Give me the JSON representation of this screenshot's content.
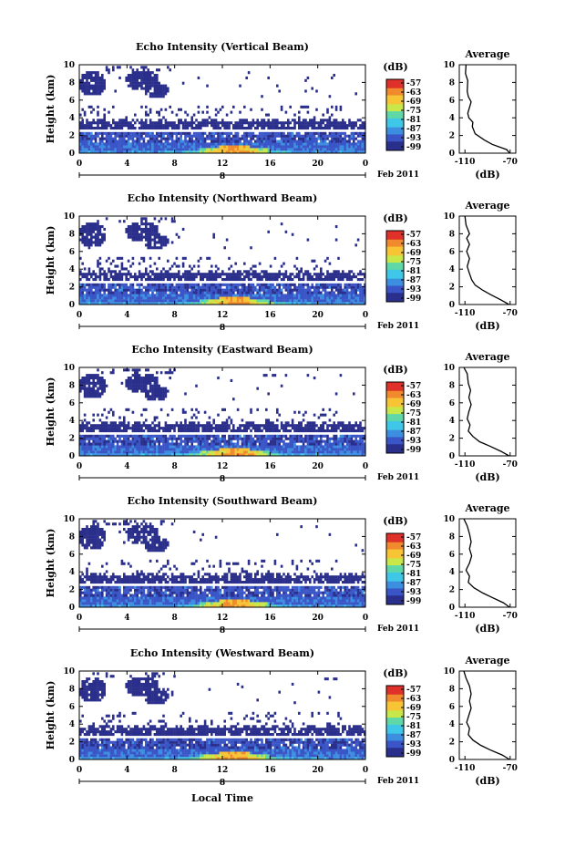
{
  "figure": {
    "xlabel": "Local Time",
    "date_label": "Feb 2011",
    "day_label": "8",
    "colorbar_unit": "(dB)",
    "colorbar_ticks": [
      "-57",
      "-63",
      "-69",
      "-75",
      "-81",
      "-87",
      "-93",
      "-99"
    ],
    "colors": {
      "scale": [
        "#2a2f8c",
        "#3a55c8",
        "#3c8ee0",
        "#3fc7e8",
        "#5fd8a8",
        "#c8e84a",
        "#f7c435",
        "#f08a2c",
        "#e0302a"
      ]
    }
  },
  "chart_data": [
    {
      "type": "heatmap",
      "title": "Echo Intensity (Vertical Beam)",
      "ylabel": "Height (km)",
      "xlim": [
        0,
        24
      ],
      "ylim": [
        0,
        10
      ],
      "xticks": [
        "0",
        "4",
        "8",
        "12",
        "16",
        "20",
        "0"
      ],
      "yticks": [
        "0",
        "2",
        "4",
        "6",
        "8",
        "10"
      ],
      "zlim": [
        -99,
        -57
      ]
    },
    {
      "type": "line",
      "title": "Average",
      "xlabel": "(dB)",
      "xticks": [
        "-110",
        "-70"
      ],
      "yticks": [
        "0",
        "2",
        "4",
        "6",
        "8",
        "10"
      ],
      "xlim": [
        -115,
        -65
      ],
      "ylim": [
        0,
        10
      ],
      "x": [
        -109,
        -109.5,
        -107.5,
        -108,
        -107,
        -104.5,
        -107.5,
        -106.5,
        -103,
        -103.5,
        -101,
        -93,
        -86,
        -73,
        -70.5
      ],
      "y": [
        10,
        9,
        8.2,
        7,
        6.4,
        5.8,
        4.5,
        4,
        3.5,
        3,
        2.2,
        1.5,
        1,
        0.4,
        0
      ]
    },
    {
      "type": "heatmap",
      "title": "Echo Intensity (Northward Beam)",
      "ylabel": "Height (km)",
      "xlim": [
        0,
        24
      ],
      "ylim": [
        0,
        10
      ],
      "xticks": [
        "0",
        "4",
        "8",
        "12",
        "16",
        "20",
        "0"
      ],
      "yticks": [
        "0",
        "2",
        "4",
        "6",
        "8",
        "10"
      ],
      "zlim": [
        -99,
        -57
      ]
    },
    {
      "type": "line",
      "title": "Average",
      "xlabel": "(dB)",
      "xticks": [
        "-110",
        "-70"
      ],
      "yticks": [
        "0",
        "2",
        "4",
        "6",
        "8",
        "10"
      ],
      "xlim": [
        -115,
        -65
      ],
      "ylim": [
        0,
        10
      ],
      "x": [
        -110,
        -109,
        -106,
        -108.5,
        -106,
        -108.5,
        -106,
        -108,
        -106,
        -104,
        -101,
        -94,
        -87,
        -78,
        -71
      ],
      "y": [
        10,
        9,
        8,
        7.5,
        6.8,
        6,
        5.2,
        4.3,
        3.5,
        2.8,
        2.2,
        1.6,
        1.1,
        0.5,
        0
      ]
    },
    {
      "type": "heatmap",
      "title": "Echo Intensity (Eastward Beam)",
      "ylabel": "Height (km)",
      "xlim": [
        0,
        24
      ],
      "ylim": [
        0,
        10
      ],
      "xticks": [
        "0",
        "4",
        "8",
        "12",
        "16",
        "20",
        "0"
      ],
      "yticks": [
        "0",
        "2",
        "4",
        "6",
        "8",
        "10"
      ],
      "zlim": [
        -99,
        -57
      ]
    },
    {
      "type": "line",
      "title": "Average",
      "xlabel": "(dB)",
      "xticks": [
        "-110",
        "-70"
      ],
      "yticks": [
        "0",
        "2",
        "4",
        "6",
        "8",
        "10"
      ],
      "xlim": [
        -115,
        -65
      ],
      "ylim": [
        0,
        10
      ],
      "x": [
        -111,
        -108,
        -107,
        -105,
        -106.5,
        -104.5,
        -106.5,
        -108,
        -105.5,
        -107,
        -103,
        -97,
        -88,
        -78,
        -71
      ],
      "y": [
        10,
        9.3,
        8.2,
        7.4,
        6.6,
        5.8,
        5,
        4.2,
        3.5,
        2.8,
        2.2,
        1.6,
        1.1,
        0.5,
        0
      ]
    },
    {
      "type": "heatmap",
      "title": "Echo Intensity (Southward Beam)",
      "ylabel": "Height (km)",
      "xlim": [
        0,
        24
      ],
      "ylim": [
        0,
        10
      ],
      "xticks": [
        "0",
        "4",
        "8",
        "12",
        "16",
        "20",
        "0"
      ],
      "yticks": [
        "0",
        "2",
        "4",
        "6",
        "8",
        "10"
      ],
      "zlim": [
        -99,
        -57
      ]
    },
    {
      "type": "line",
      "title": "Average",
      "xlabel": "(dB)",
      "xticks": [
        "-110",
        "-70"
      ],
      "yticks": [
        "0",
        "2",
        "4",
        "6",
        "8",
        "10"
      ],
      "xlim": [
        -115,
        -65
      ],
      "ylim": [
        0,
        10
      ],
      "x": [
        -111,
        -108,
        -106,
        -104.5,
        -106,
        -104,
        -106,
        -109,
        -106,
        -107,
        -102,
        -94,
        -86,
        -76,
        -70.5
      ],
      "y": [
        10,
        9.2,
        8.3,
        7.4,
        6.6,
        5.8,
        5,
        4.2,
        3.5,
        2.8,
        2.2,
        1.6,
        1.1,
        0.5,
        0
      ]
    },
    {
      "type": "heatmap",
      "title": "Echo Intensity (Westward Beam)",
      "ylabel": "Height (km)",
      "xlim": [
        0,
        24
      ],
      "ylim": [
        0,
        10
      ],
      "xticks": [
        "0",
        "4",
        "8",
        "12",
        "16",
        "20",
        "0"
      ],
      "yticks": [
        "0",
        "2",
        "4",
        "6",
        "8",
        "10"
      ],
      "zlim": [
        -99,
        -57
      ]
    },
    {
      "type": "line",
      "title": "Average",
      "xlabel": "(dB)",
      "xticks": [
        "-110",
        "-70"
      ],
      "yticks": [
        "0",
        "2",
        "4",
        "6",
        "8",
        "10"
      ],
      "xlim": [
        -115,
        -65
      ],
      "ylim": [
        0,
        10
      ],
      "x": [
        -111,
        -109,
        -106,
        -104.5,
        -106,
        -104.5,
        -106.5,
        -108.5,
        -106,
        -107,
        -103,
        -96,
        -88,
        -77,
        -70.5
      ],
      "y": [
        10,
        9.2,
        8.3,
        7.4,
        6.6,
        5.8,
        5,
        4.2,
        3.5,
        2.8,
        2.2,
        1.6,
        1.1,
        0.5,
        0
      ]
    }
  ]
}
